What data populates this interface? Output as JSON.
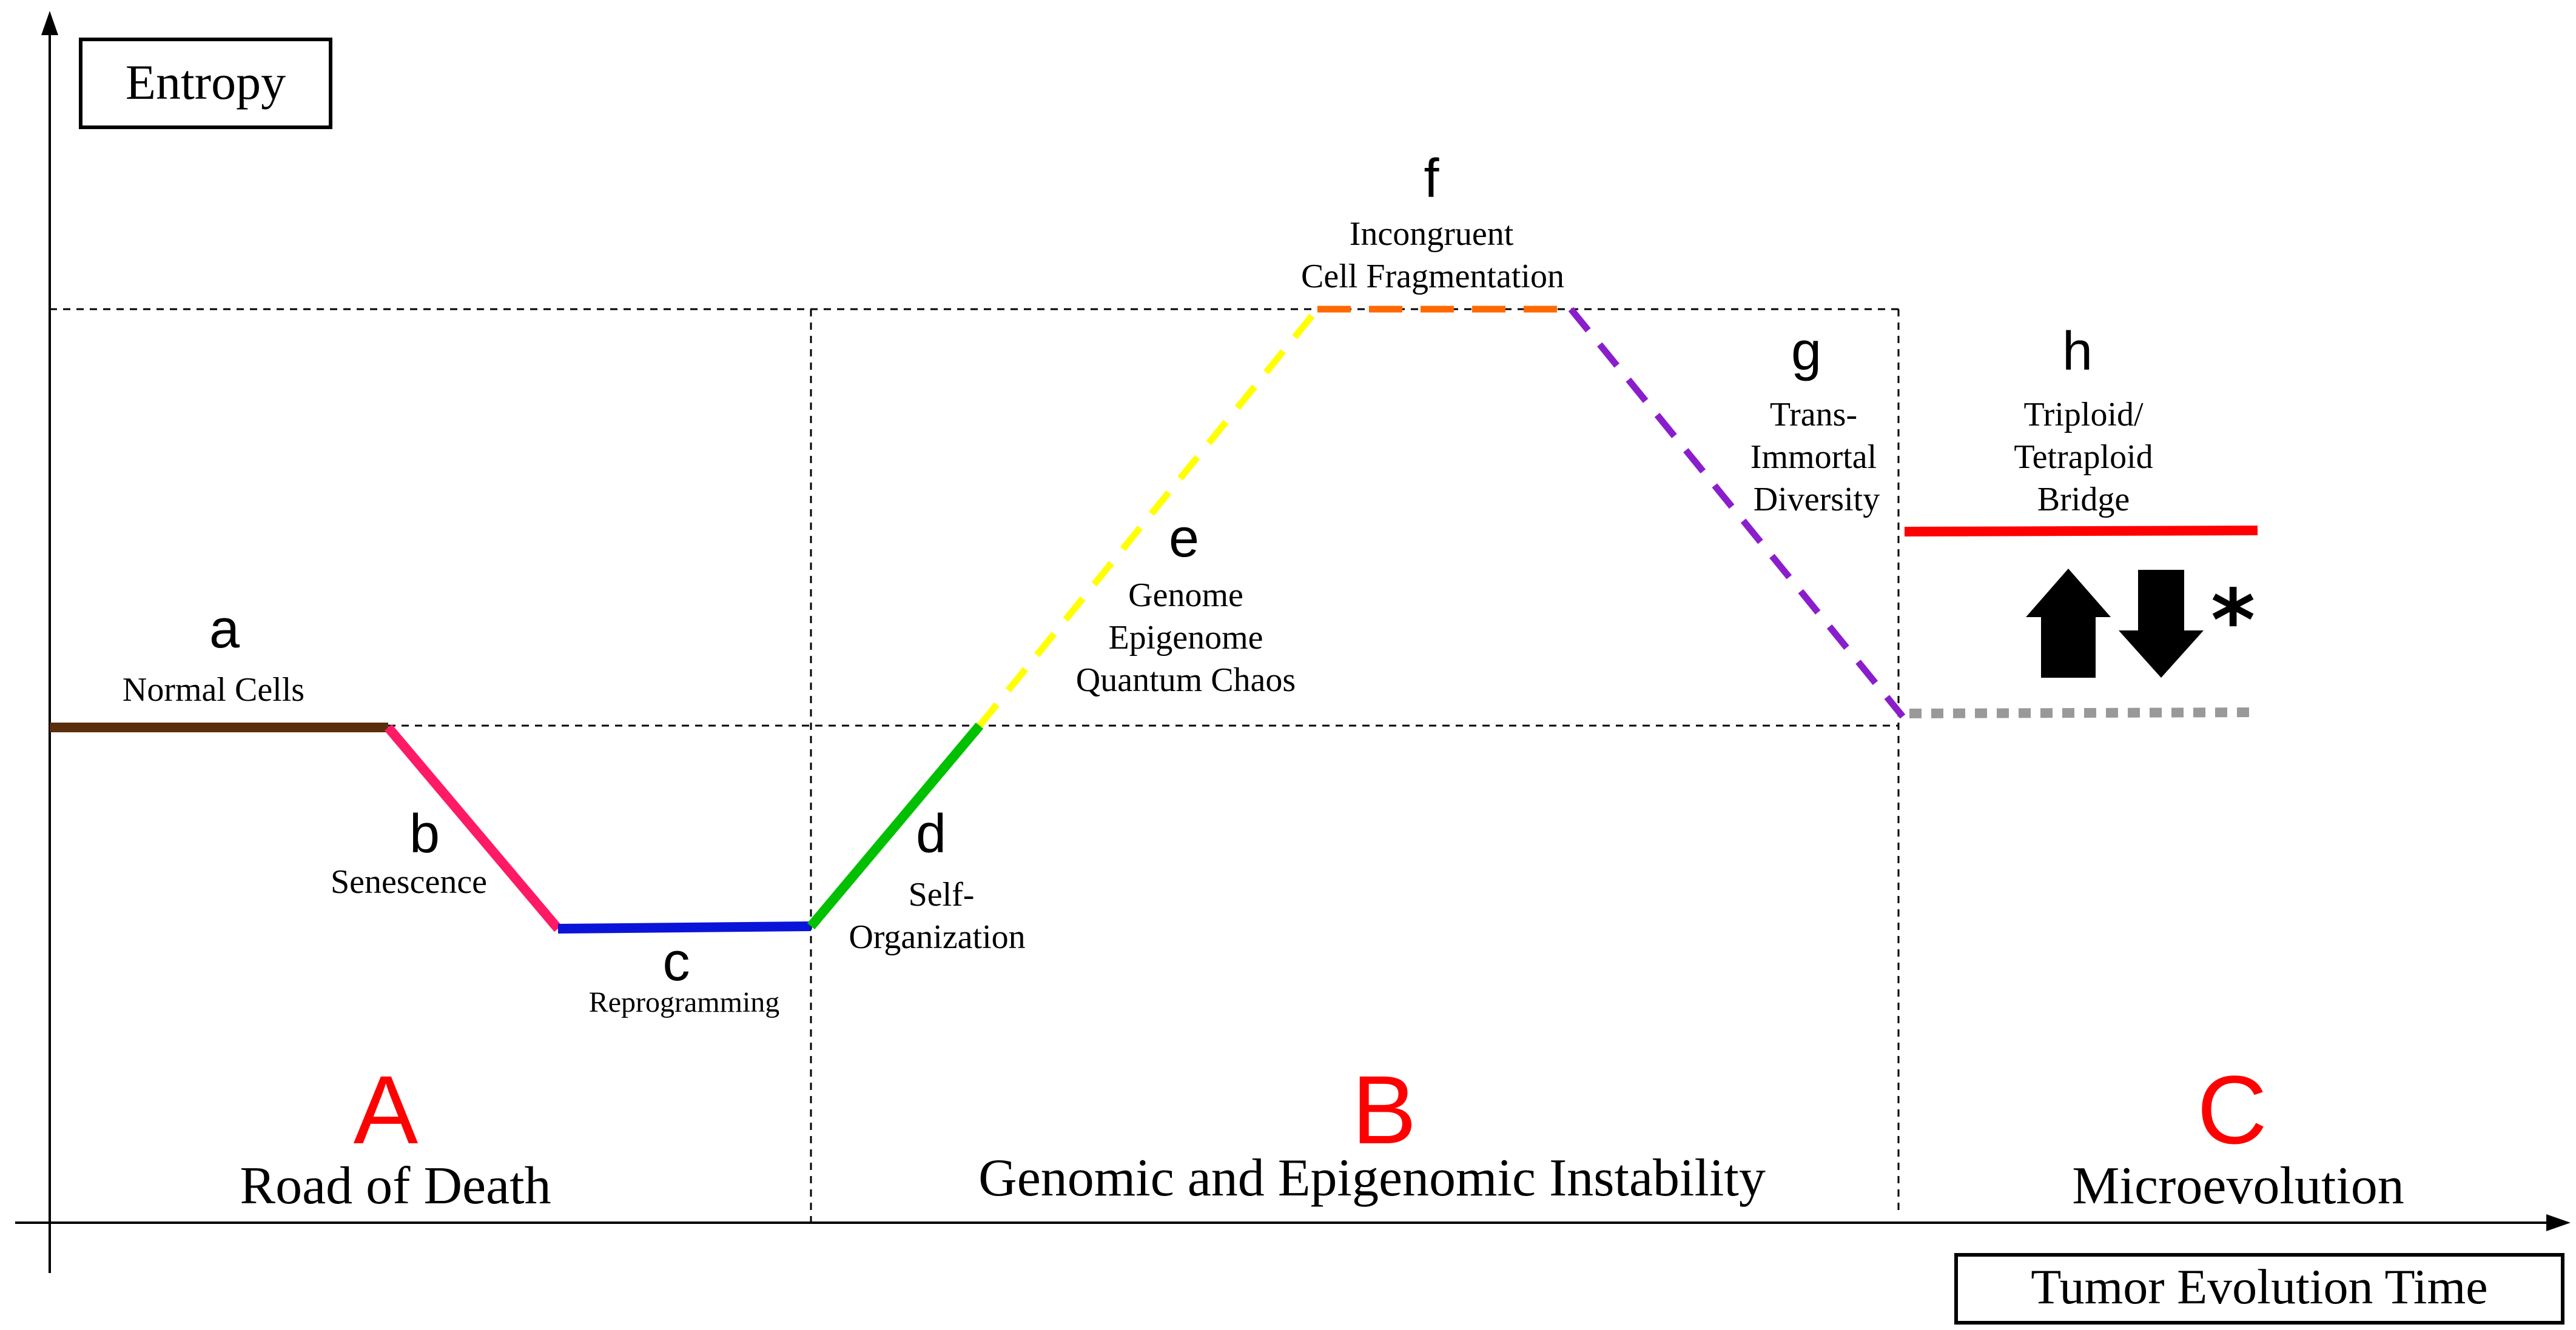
{
  "axes": {
    "y_label": "Entropy",
    "x_label": "Tumor Evolution Time"
  },
  "stages": [
    {
      "letter": "a",
      "label": "Normal Cells",
      "color": "#5a2d0c"
    },
    {
      "letter": "b",
      "label": "Senescence",
      "color": "#ff1a66"
    },
    {
      "letter": "c",
      "label": "Reprogramming",
      "color": "#0a14d8"
    },
    {
      "letter": "d",
      "label_lines": [
        "Self-",
        "Organization"
      ],
      "color": "#00c000"
    },
    {
      "letter": "e",
      "label_lines": [
        "Genome",
        "Epigenome",
        "Quantum Chaos"
      ],
      "color": "#ffff00"
    },
    {
      "letter": "f",
      "label_lines": [
        "Incongruent",
        "Cell Fragmentation"
      ],
      "color": "#ff6a00"
    },
    {
      "letter": "g",
      "label_lines": [
        "Trans-",
        "Immortal",
        "Diversity"
      ],
      "color": "#8a1ecc"
    },
    {
      "letter": "h",
      "label_lines": [
        "Triploid/",
        "Tetraploid",
        "Bridge"
      ],
      "color": "#ff0000",
      "secondary_color": "#999999"
    }
  ],
  "phases": [
    {
      "letter": "A",
      "label": "Road of Death"
    },
    {
      "letter": "B",
      "label": "Genomic and Epigenomic Instability"
    },
    {
      "letter": "C",
      "label": "Microevolution"
    }
  ],
  "asterisk": "*",
  "accent_color": "#ff0000",
  "icons": {
    "up": "up-arrow-icon",
    "down": "down-arrow-icon"
  }
}
